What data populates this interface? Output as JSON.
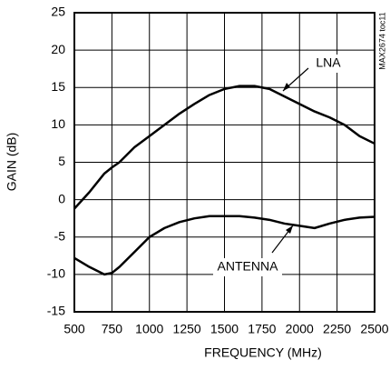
{
  "chart_data": {
    "type": "line",
    "x_label": "FREQUENCY (MHz)",
    "y_label": "GAIN (dB)",
    "side_note": "MAX2674 toc11",
    "x": [
      500,
      600,
      700,
      750,
      800,
      900,
      1000,
      1100,
      1200,
      1300,
      1400,
      1500,
      1600,
      1700,
      1800,
      1900,
      2000,
      2100,
      2200,
      2300,
      2400,
      2500
    ],
    "series": [
      {
        "name": "LNA",
        "color": "#000000",
        "values": [
          -1.2,
          1,
          3.5,
          4.3,
          5,
          7,
          8.5,
          10,
          11.5,
          12.8,
          14,
          14.8,
          15.2,
          15.2,
          14.8,
          13.8,
          12.8,
          11.8,
          11,
          10,
          8.5,
          7.5
        ]
      },
      {
        "name": "ANTENNA",
        "color": "#000000",
        "values": [
          -7.8,
          -9,
          -10,
          -9.8,
          -9,
          -7,
          -5,
          -3.8,
          -3,
          -2.5,
          -2.2,
          -2.2,
          -2.2,
          -2.4,
          -2.7,
          -3.2,
          -3.5,
          -3.8,
          -3.2,
          -2.7,
          -2.4,
          -2.3
        ]
      }
    ],
    "xlim": [
      500,
      2500
    ],
    "xticks": [
      500,
      750,
      1000,
      1250,
      1500,
      1750,
      2000,
      2250,
      2500
    ],
    "ylim": [
      -15,
      25
    ],
    "yticks": [
      -15,
      -10,
      -5,
      0,
      5,
      10,
      15,
      20,
      25
    ],
    "grid": true
  }
}
